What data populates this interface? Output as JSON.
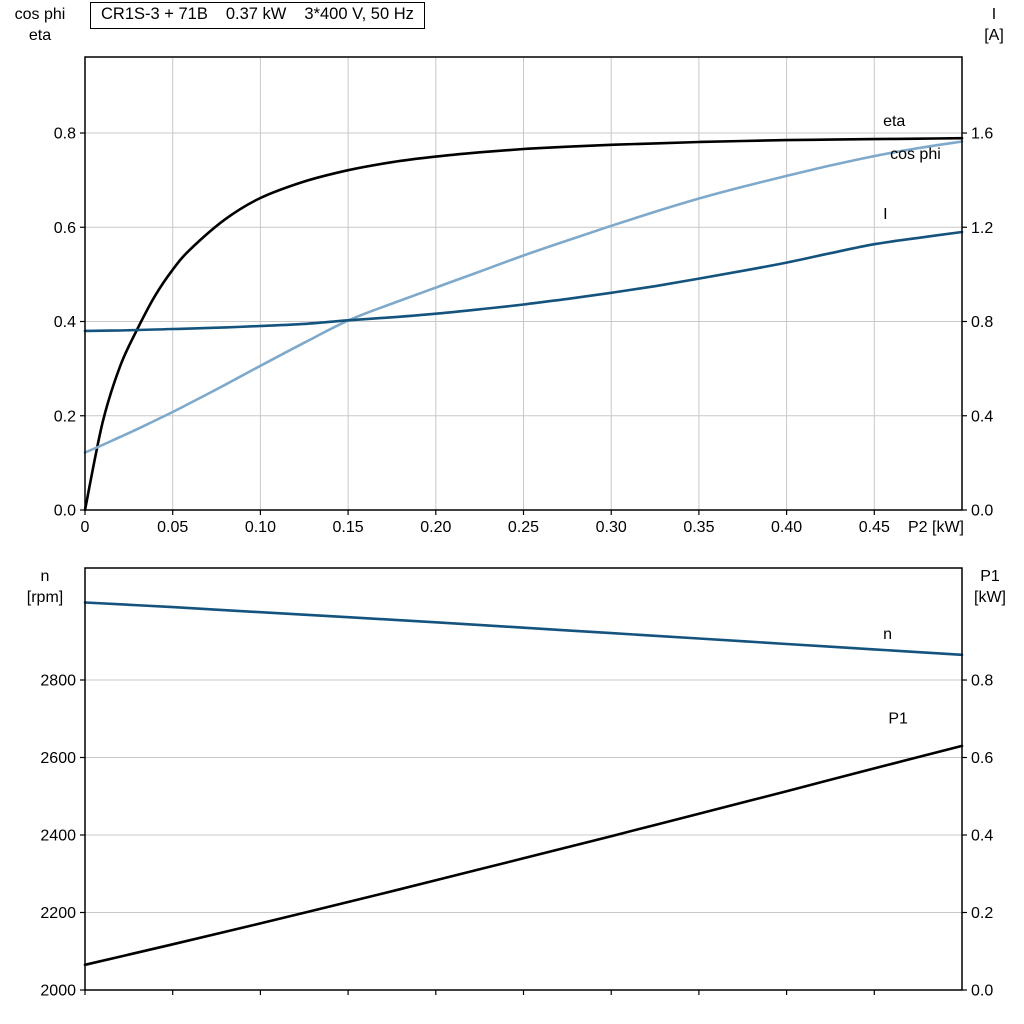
{
  "chart_data": [
    {
      "type": "line",
      "title_parts": [
        "CR1S-3 + 71B",
        "0.37 kW",
        "3*400 V, 50 Hz"
      ],
      "x_axis_end_label": "P2 [kW]",
      "x_range": [
        0,
        0.5
      ],
      "x_ticks": [
        0,
        0.05,
        0.1,
        0.15,
        0.2,
        0.25,
        0.3,
        0.35,
        0.4,
        0.45
      ],
      "x_tick_labels": [
        "0",
        "0.05",
        "0.10",
        "0.15",
        "0.20",
        "0.25",
        "0.30",
        "0.35",
        "0.40",
        "0.45"
      ],
      "grid": {
        "vertical": true,
        "horizontal": true
      },
      "left_axis": {
        "labels": [
          "cos phi",
          "eta"
        ],
        "range": [
          0,
          0.9613
        ],
        "ticks": [
          0,
          0.2,
          0.4,
          0.6,
          0.8
        ],
        "tick_labels": [
          "0.0",
          "0.2",
          "0.4",
          "0.6",
          "0.8"
        ]
      },
      "right_axis": {
        "labels": [
          "I",
          "[A]"
        ],
        "range": [
          0,
          1.9226
        ],
        "ticks": [
          0,
          0.4,
          0.8,
          1.2,
          1.6
        ],
        "tick_labels": [
          "0.0",
          "0.4",
          "0.8",
          "1.2",
          "1.6"
        ]
      },
      "x": [
        0,
        0.01,
        0.02,
        0.03,
        0.04,
        0.05,
        0.06,
        0.08,
        0.1,
        0.125,
        0.15,
        0.175,
        0.2,
        0.225,
        0.25,
        0.275,
        0.3,
        0.325,
        0.35,
        0.375,
        0.4,
        0.425,
        0.45,
        0.475,
        0.5
      ],
      "series": [
        {
          "name": "eta",
          "axis": "left",
          "color": "#000000",
          "label_x": 0.455,
          "label_y": 0.815,
          "values": [
            0,
            0.185,
            0.305,
            0.385,
            0.455,
            0.51,
            0.553,
            0.617,
            0.662,
            0.697,
            0.721,
            0.738,
            0.75,
            0.759,
            0.766,
            0.771,
            0.775,
            0.778,
            0.781,
            0.783,
            0.785,
            0.786,
            0.787,
            0.788,
            0.789
          ]
        },
        {
          "name": "cos phi",
          "axis": "left",
          "color": "#7fa9cb",
          "label_x": 0.459,
          "label_y": 0.745,
          "values": [
            0.122,
            0.138,
            0.155,
            0.172,
            0.19,
            0.208,
            0.227,
            0.266,
            0.306,
            0.355,
            0.402,
            0.438,
            0.472,
            0.506,
            0.54,
            0.572,
            0.603,
            0.633,
            0.661,
            0.686,
            0.709,
            0.731,
            0.751,
            0.768,
            0.782
          ]
        },
        {
          "name": "I",
          "axis": "right",
          "color": "#14537e",
          "label_x": 0.455,
          "label_y": 1.235,
          "values": [
            0.76,
            0.761,
            0.762,
            0.764,
            0.766,
            0.768,
            0.77,
            0.775,
            0.781,
            0.79,
            0.805,
            0.818,
            0.833,
            0.852,
            0.872,
            0.896,
            0.922,
            0.95,
            0.982,
            1.015,
            1.05,
            1.09,
            1.128,
            1.155,
            1.18
          ]
        }
      ]
    },
    {
      "type": "line",
      "x_range": [
        0,
        0.5
      ],
      "x_ticks": [
        0,
        0.05,
        0.1,
        0.15,
        0.2,
        0.25,
        0.3,
        0.35,
        0.4,
        0.45
      ],
      "x_tick_labels": [],
      "grid": {
        "vertical": false,
        "horizontal": true
      },
      "left_axis": {
        "labels": [
          "n",
          "[rpm]"
        ],
        "range": [
          2000,
          3089
        ],
        "ticks": [
          2000,
          2200,
          2400,
          2600,
          2800
        ],
        "tick_labels": [
          "2000",
          "2200",
          "2400",
          "2600",
          "2800"
        ]
      },
      "right_axis": {
        "labels": [
          "P1",
          "[kW]"
        ],
        "range": [
          0,
          1.0891
        ],
        "ticks": [
          0,
          0.2,
          0.4,
          0.6,
          0.8
        ],
        "tick_labels": [
          "0.0",
          "0.2",
          "0.4",
          "0.6",
          "0.8"
        ]
      },
      "x": [
        0,
        0.05,
        0.1,
        0.15,
        0.2,
        0.25,
        0.3,
        0.35,
        0.4,
        0.45,
        0.5
      ],
      "series": [
        {
          "name": "n",
          "axis": "left",
          "color": "#14537e",
          "label_x": 0.455,
          "label_y": 2906,
          "values": [
            3000,
            2988,
            2975,
            2962,
            2949,
            2935,
            2921,
            2907,
            2893,
            2879,
            2865
          ]
        },
        {
          "name": "P1",
          "axis": "right",
          "color": "#000000",
          "label_x": 0.458,
          "label_y": 0.688,
          "values": [
            0.065,
            0.118,
            0.172,
            0.227,
            0.283,
            0.34,
            0.397,
            0.455,
            0.513,
            0.572,
            0.63
          ]
        }
      ]
    }
  ],
  "style": {
    "grid_color": "#c8c8c8",
    "frame_color": "#000000",
    "curve_width": 2.6
  }
}
